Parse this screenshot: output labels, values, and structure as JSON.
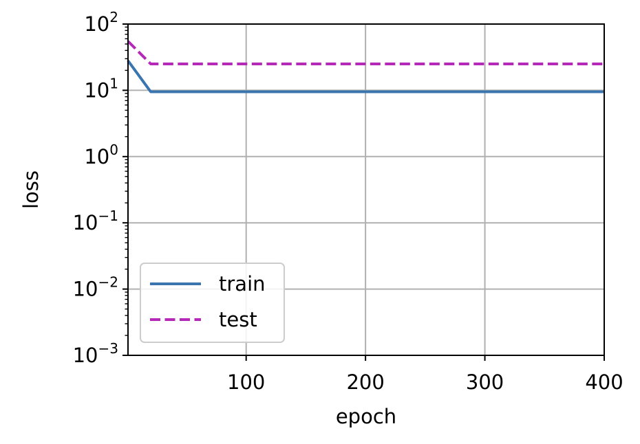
{
  "chart_data": {
    "type": "line",
    "xlabel": "epoch",
    "ylabel": "loss",
    "xlim": [
      1,
      400
    ],
    "ylim": [
      0.001,
      100
    ],
    "yscale": "log",
    "grid": true,
    "legend_position": "lower-left",
    "x_ticks": [
      100,
      200,
      300,
      400
    ],
    "x_tick_labels": [
      "100",
      "200",
      "300",
      "400"
    ],
    "y_ticks": [
      {
        "value": 0.001,
        "base": "10",
        "exp": "−3"
      },
      {
        "value": 0.01,
        "base": "10",
        "exp": "−2"
      },
      {
        "value": 0.1,
        "base": "10",
        "exp": "−1"
      },
      {
        "value": 1,
        "base": "10",
        "exp": "0"
      },
      {
        "value": 10,
        "base": "10",
        "exp": "1"
      },
      {
        "value": 100,
        "base": "10",
        "exp": "2"
      }
    ],
    "series": [
      {
        "name": "train",
        "color": "#3a75b0",
        "style": "solid",
        "x": [
          1,
          20,
          40,
          100,
          200,
          300,
          400
        ],
        "y": [
          28,
          9.5,
          9.5,
          9.5,
          9.5,
          9.5,
          9.5
        ]
      },
      {
        "name": "test",
        "color": "#b529b8",
        "style": "dashed",
        "x": [
          1,
          20,
          40,
          100,
          200,
          300,
          400
        ],
        "y": [
          55,
          25,
          25,
          25,
          25,
          25,
          25
        ]
      }
    ]
  }
}
